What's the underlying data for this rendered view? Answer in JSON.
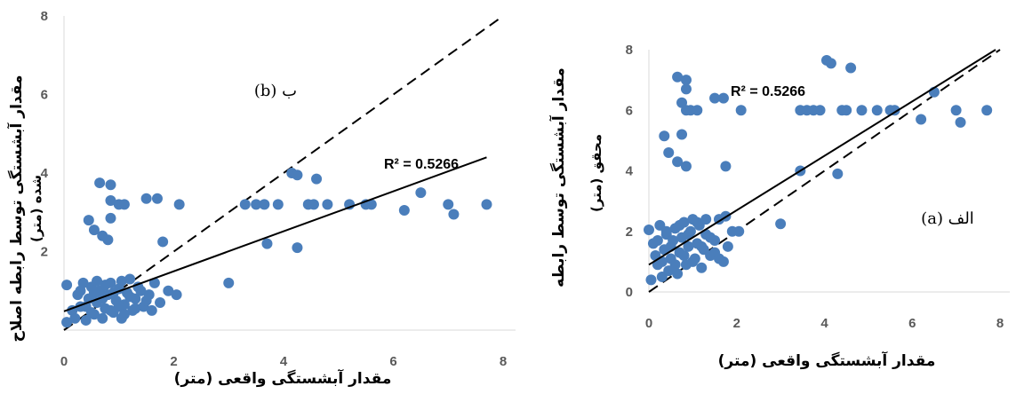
{
  "chart_data": [
    {
      "id": "b",
      "type": "scatter",
      "title": "",
      "panel_label": "ب (b)",
      "r2_label": "R² = 0.5266",
      "xlabel": "مقدار آبشستگی واقعی (متر)",
      "ylabel": [
        "مقدار آبشستگی توسط رابطه اصلاح",
        "شده (متر)"
      ],
      "xlim": [
        0,
        8
      ],
      "ylim": [
        0,
        8
      ],
      "xticks": [
        0,
        2,
        4,
        6,
        8
      ],
      "yticks": [
        2,
        4,
        6,
        8
      ],
      "grid": false,
      "legend": "none",
      "point_color": "#4a7ebb",
      "trendline": {
        "x": [
          0,
          7.7
        ],
        "y": [
          0.48,
          4.4
        ]
      },
      "identity_line": {
        "x": [
          0,
          8
        ],
        "y": [
          0,
          8
        ]
      },
      "points": [
        [
          0.05,
          0.2
        ],
        [
          0.05,
          1.15
        ],
        [
          0.15,
          0.5
        ],
        [
          0.2,
          0.3
        ],
        [
          0.25,
          0.9
        ],
        [
          0.3,
          0.6
        ],
        [
          0.35,
          1.2
        ],
        [
          0.4,
          0.25
        ],
        [
          0.45,
          0.8
        ],
        [
          0.5,
          1.1
        ],
        [
          0.55,
          0.4
        ],
        [
          0.6,
          0.7
        ],
        [
          0.65,
          1.0
        ],
        [
          0.7,
          0.3
        ],
        [
          0.75,
          0.55
        ],
        [
          0.8,
          0.9
        ],
        [
          0.85,
          1.2
        ],
        [
          0.9,
          0.45
        ],
        [
          0.95,
          0.75
        ],
        [
          1.0,
          1.05
        ],
        [
          1.05,
          0.3
        ],
        [
          1.1,
          0.65
        ],
        [
          1.15,
          0.95
        ],
        [
          1.2,
          1.3
        ],
        [
          1.25,
          0.5
        ],
        [
          1.3,
          0.8
        ],
        [
          1.35,
          1.1
        ],
        [
          1.45,
          0.6
        ],
        [
          1.55,
          0.9
        ],
        [
          1.65,
          1.2
        ],
        [
          1.75,
          0.7
        ],
        [
          1.9,
          1.0
        ],
        [
          2.05,
          0.9
        ],
        [
          0.3,
          1.0
        ],
        [
          0.4,
          0.6
        ],
        [
          0.5,
          0.45
        ],
        [
          0.55,
          0.95
        ],
        [
          0.6,
          1.25
        ],
        [
          0.7,
          0.8
        ],
        [
          0.75,
          1.15
        ],
        [
          0.85,
          0.5
        ],
        [
          0.9,
          0.95
        ],
        [
          1.0,
          0.6
        ],
        [
          1.05,
          1.25
        ],
        [
          1.1,
          0.4
        ],
        [
          1.2,
          0.85
        ],
        [
          1.3,
          0.55
        ],
        [
          1.4,
          1.0
        ],
        [
          1.5,
          0.75
        ],
        [
          1.6,
          0.5
        ],
        [
          0.45,
          2.8
        ],
        [
          0.55,
          2.55
        ],
        [
          0.7,
          2.4
        ],
        [
          0.8,
          2.3
        ],
        [
          0.85,
          2.85
        ],
        [
          0.65,
          3.75
        ],
        [
          0.85,
          3.7
        ],
        [
          0.85,
          3.3
        ],
        [
          1.0,
          3.2
        ],
        [
          1.1,
          3.2
        ],
        [
          1.5,
          3.35
        ],
        [
          1.7,
          3.35
        ],
        [
          2.1,
          3.2
        ],
        [
          1.8,
          2.25
        ],
        [
          3.0,
          1.2
        ],
        [
          3.3,
          3.2
        ],
        [
          3.5,
          3.2
        ],
        [
          3.65,
          3.2
        ],
        [
          3.9,
          3.2
        ],
        [
          3.7,
          2.2
        ],
        [
          4.15,
          4.0
        ],
        [
          4.25,
          3.95
        ],
        [
          4.6,
          3.85
        ],
        [
          4.25,
          2.1
        ],
        [
          4.45,
          3.2
        ],
        [
          4.55,
          3.2
        ],
        [
          4.8,
          3.2
        ],
        [
          5.2,
          3.2
        ],
        [
          5.5,
          3.2
        ],
        [
          5.6,
          3.2
        ],
        [
          6.2,
          3.05
        ],
        [
          6.5,
          3.5
        ],
        [
          7.0,
          3.2
        ],
        [
          7.1,
          2.95
        ],
        [
          7.7,
          3.2
        ]
      ]
    },
    {
      "id": "a",
      "type": "scatter",
      "title": "",
      "panel_label": "الف (a)",
      "r2_label": "R² = 0.5266",
      "xlabel": "مقدار آبشستگی واقعی (متر)",
      "ylabel": [
        "مقدار آبشستگی توسط رابطه",
        "محقق (متر)"
      ],
      "xlim": [
        0,
        8
      ],
      "ylim": [
        0,
        8
      ],
      "xticks": [
        0,
        2,
        4,
        6,
        8
      ],
      "yticks": [
        0,
        2,
        4,
        6,
        8
      ],
      "grid": false,
      "legend": "none",
      "point_color": "#4a7ebb",
      "trendline": {
        "x": [
          0,
          7.9
        ],
        "y": [
          0.9,
          8.0
        ]
      },
      "identity_line": {
        "x": [
          0,
          8
        ],
        "y": [
          0,
          8
        ]
      },
      "points": [
        [
          0.0,
          2.05
        ],
        [
          0.05,
          0.4
        ],
        [
          0.1,
          1.6
        ],
        [
          0.15,
          1.2
        ],
        [
          0.2,
          0.9
        ],
        [
          0.25,
          2.2
        ],
        [
          0.3,
          0.5
        ],
        [
          0.35,
          1.4
        ],
        [
          0.4,
          1.9
        ],
        [
          0.45,
          0.7
        ],
        [
          0.5,
          1.1
        ],
        [
          0.55,
          1.7
        ],
        [
          0.6,
          2.1
        ],
        [
          0.65,
          0.6
        ],
        [
          0.7,
          1.3
        ],
        [
          0.75,
          1.8
        ],
        [
          0.8,
          2.3
        ],
        [
          0.85,
          0.9
        ],
        [
          0.9,
          1.5
        ],
        [
          0.95,
          2.0
        ],
        [
          1.0,
          2.4
        ],
        [
          1.05,
          1.1
        ],
        [
          1.1,
          1.6
        ],
        [
          1.15,
          2.2
        ],
        [
          1.2,
          0.8
        ],
        [
          1.25,
          1.4
        ],
        [
          1.3,
          1.9
        ],
        [
          1.4,
          1.2
        ],
        [
          1.5,
          1.7
        ],
        [
          1.6,
          2.4
        ],
        [
          1.7,
          1.0
        ],
        [
          1.8,
          1.5
        ],
        [
          1.9,
          2.0
        ],
        [
          2.05,
          2.0
        ],
        [
          0.3,
          1.0
        ],
        [
          0.4,
          2.0
        ],
        [
          0.5,
          1.5
        ],
        [
          0.6,
          0.9
        ],
        [
          0.7,
          2.2
        ],
        [
          0.8,
          1.2
        ],
        [
          0.9,
          1.9
        ],
        [
          1.0,
          1.0
        ],
        [
          1.1,
          2.3
        ],
        [
          1.2,
          1.5
        ],
        [
          1.3,
          2.4
        ],
        [
          1.4,
          1.8
        ],
        [
          1.5,
          1.3
        ],
        [
          1.6,
          1.1
        ],
        [
          1.75,
          2.5
        ],
        [
          0.2,
          1.7
        ],
        [
          0.35,
          5.15
        ],
        [
          0.45,
          4.6
        ],
        [
          0.65,
          7.1
        ],
        [
          0.85,
          7.0
        ],
        [
          0.85,
          6.7
        ],
        [
          0.75,
          6.25
        ],
        [
          0.85,
          6.0
        ],
        [
          0.95,
          6.0
        ],
        [
          0.75,
          5.2
        ],
        [
          0.65,
          4.3
        ],
        [
          0.85,
          4.15
        ],
        [
          1.1,
          6.0
        ],
        [
          1.5,
          6.4
        ],
        [
          1.7,
          6.4
        ],
        [
          2.1,
          6.0
        ],
        [
          1.75,
          4.15
        ],
        [
          3.0,
          2.25
        ],
        [
          3.45,
          4.0
        ],
        [
          3.45,
          6.0
        ],
        [
          3.6,
          6.0
        ],
        [
          3.75,
          6.0
        ],
        [
          3.9,
          6.0
        ],
        [
          4.05,
          7.65
        ],
        [
          4.15,
          7.55
        ],
        [
          4.3,
          3.9
        ],
        [
          4.4,
          6.0
        ],
        [
          4.5,
          6.0
        ],
        [
          4.6,
          7.4
        ],
        [
          4.85,
          6.0
        ],
        [
          5.2,
          6.0
        ],
        [
          5.5,
          6.0
        ],
        [
          5.6,
          6.0
        ],
        [
          6.2,
          5.7
        ],
        [
          6.5,
          6.6
        ],
        [
          7.0,
          6.0
        ],
        [
          7.1,
          5.6
        ],
        [
          7.7,
          6.0
        ]
      ]
    }
  ]
}
